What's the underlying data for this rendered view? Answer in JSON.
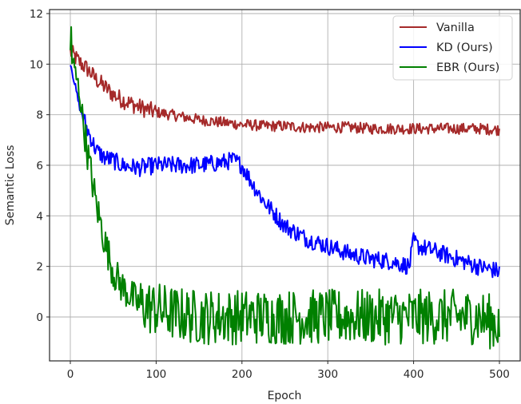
{
  "chart_data": {
    "type": "line",
    "title": "",
    "xlabel": "Epoch",
    "ylabel": "Semantic Loss",
    "xlim": [
      -25,
      525
    ],
    "ylim": [
      -1.75,
      12.2
    ],
    "xticks": [
      0,
      100,
      200,
      300,
      400,
      500
    ],
    "yticks": [
      0,
      2,
      4,
      6,
      8,
      10,
      12
    ],
    "grid": true,
    "legend_position": "upper right",
    "x": [
      0,
      10,
      20,
      30,
      40,
      50,
      60,
      80,
      100,
      125,
      150,
      175,
      190,
      200,
      210,
      225,
      250,
      275,
      300,
      325,
      350,
      375,
      395,
      400,
      405,
      425,
      450,
      475,
      500
    ],
    "series": [
      {
        "name": "Vanilla",
        "color": "#a52a2a",
        "values": [
          10.5,
          10.1,
          9.8,
          9.4,
          9.1,
          8.8,
          8.6,
          8.3,
          8.1,
          7.95,
          7.8,
          7.7,
          7.65,
          7.6,
          7.6,
          7.55,
          7.55,
          7.5,
          7.5,
          7.5,
          7.45,
          7.45,
          7.45,
          7.45,
          7.45,
          7.45,
          7.45,
          7.45,
          7.4
        ]
      },
      {
        "name": "KD (Ours)",
        "color": "#0000ff",
        "values": [
          10.1,
          8.4,
          7.4,
          6.6,
          6.3,
          6.2,
          6.0,
          5.9,
          6.0,
          6.0,
          6.0,
          6.1,
          6.2,
          6.0,
          5.4,
          4.6,
          3.6,
          3.1,
          2.8,
          2.5,
          2.3,
          2.2,
          2.0,
          3.0,
          2.8,
          2.6,
          2.3,
          2.0,
          1.8
        ]
      },
      {
        "name": "EBR (Ours)",
        "color": "#008000",
        "values": [
          10.5,
          9.0,
          6.5,
          4.5,
          3.0,
          1.8,
          1.2,
          0.5,
          0.3,
          0.1,
          0.0,
          0.0,
          0.0,
          0.0,
          0.0,
          0.0,
          0.0,
          0.0,
          0.0,
          0.0,
          0.0,
          0.0,
          0.0,
          0.0,
          0.0,
          0.0,
          0.0,
          0.0,
          -0.3
        ]
      }
    ],
    "noise_amplitude": {
      "Vanilla": 0.35,
      "KD (Ours)": 0.35,
      "EBR (Ours)": 1.1
    }
  },
  "legend": {
    "items": [
      {
        "label": "Vanilla",
        "color": "#a52a2a"
      },
      {
        "label": "KD (Ours)",
        "color": "#0000ff"
      },
      {
        "label": "EBR (Ours)",
        "color": "#008000"
      }
    ]
  },
  "axes": {
    "xlabel": "Epoch",
    "ylabel": "Semantic Loss",
    "xtick_labels": [
      "0",
      "100",
      "200",
      "300",
      "400",
      "500"
    ],
    "ytick_labels": [
      "0",
      "2",
      "4",
      "6",
      "8",
      "10",
      "12"
    ]
  }
}
